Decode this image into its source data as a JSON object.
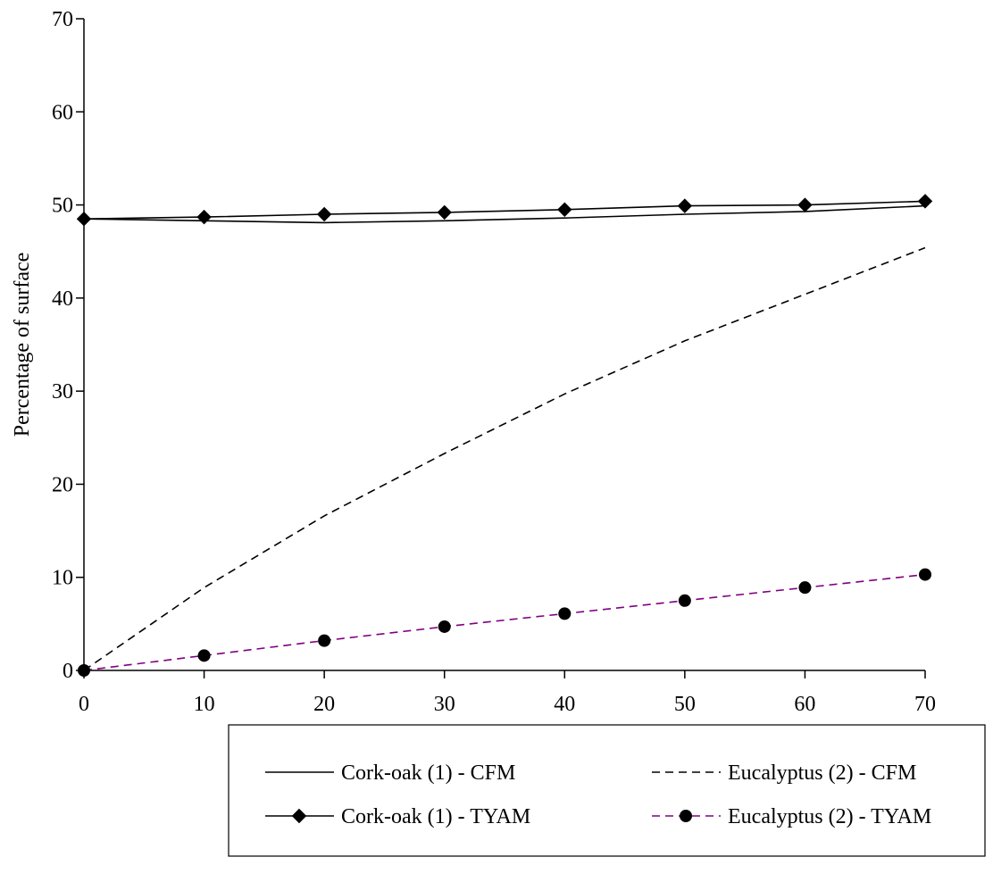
{
  "chart_data": {
    "type": "line",
    "title": "",
    "xlabel": "",
    "ylabel": "Percentage of surface",
    "xlim": [
      0,
      70
    ],
    "ylim": [
      0,
      70
    ],
    "x_ticks": [
      0,
      10,
      20,
      30,
      40,
      50,
      60,
      70
    ],
    "y_ticks": [
      0,
      10,
      20,
      30,
      40,
      50,
      60,
      70
    ],
    "grid": false,
    "legend_position": "bottom-right",
    "x": [
      0,
      10,
      20,
      30,
      40,
      50,
      60,
      70
    ],
    "series": [
      {
        "name": "Cork-oak (1) - CFM",
        "values": [
          48.5,
          48.3,
          48.1,
          48.3,
          48.6,
          49.0,
          49.3,
          49.9
        ],
        "line": "solid",
        "marker": "none",
        "color": "#000000"
      },
      {
        "name": "Eucalyptus (2) - CFM",
        "values": [
          0,
          8.9,
          16.6,
          23.3,
          29.7,
          35.4,
          40.4,
          45.4
        ],
        "line": "dashed",
        "marker": "none",
        "color": "#000000"
      },
      {
        "name": "Cork-oak (1) - TYAM",
        "values": [
          48.5,
          48.7,
          49.0,
          49.2,
          49.5,
          49.9,
          50.0,
          50.4
        ],
        "line": "solid",
        "marker": "diamond",
        "color": "#000000"
      },
      {
        "name": "Eucalyptus (2) - TYAM",
        "values": [
          0,
          1.6,
          3.2,
          4.7,
          6.1,
          7.5,
          8.9,
          10.3
        ],
        "line": "dashed",
        "marker": "circle",
        "color": "#800080"
      }
    ]
  }
}
